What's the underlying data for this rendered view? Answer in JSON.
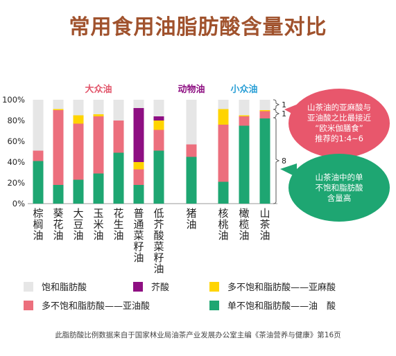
{
  "title": "常用食用油脂肪酸含量对比",
  "chart_data": {
    "type": "bar",
    "stacked": true,
    "ylim": [
      0,
      100
    ],
    "yticks": [
      "0%",
      "20%",
      "40%",
      "60%",
      "80%",
      "100%"
    ],
    "groups": [
      {
        "label": "大众油",
        "color": "#e2566b"
      },
      {
        "label": "动物油",
        "color": "#8e0f82"
      },
      {
        "label": "小众油",
        "color": "#2a9fd6"
      }
    ],
    "categories": [
      {
        "label": "棕榈油",
        "group": 0
      },
      {
        "label": "葵花油",
        "group": 0
      },
      {
        "label": "大豆油",
        "group": 0
      },
      {
        "label": "玉米油",
        "group": 0
      },
      {
        "label": "花生油",
        "group": 0
      },
      {
        "label": "普通菜籽油",
        "group": 0
      },
      {
        "label": "低芥酸菜籽油",
        "group": 0
      },
      {
        "label": "猪油",
        "group": 1
      },
      {
        "label": "核桃油",
        "group": 2
      },
      {
        "label": "橄榄油",
        "group": 2
      },
      {
        "label": "山茶油",
        "group": 2
      }
    ],
    "series": [
      {
        "name": "单不饱和脂肪酸——油　酸",
        "color": "#1ea672",
        "values": [
          41,
          18,
          23,
          29,
          49,
          18,
          51,
          45,
          21,
          75,
          82
        ]
      },
      {
        "name": "多不饱和脂肪酸——亚油酸",
        "color": "#ec6f7d",
        "values": [
          10,
          72,
          54,
          55,
          31,
          15,
          20,
          12,
          55,
          9,
          7
        ]
      },
      {
        "name": "多不饱和脂肪酸——亚麻酸",
        "color": "#ffd400",
        "values": [
          0,
          1,
          8,
          2,
          0,
          7,
          9,
          0,
          15,
          1,
          1
        ]
      },
      {
        "name": "芥酸",
        "color": "#8e0f82",
        "values": [
          0,
          0,
          0,
          0,
          0,
          52,
          4,
          0,
          0,
          0,
          0
        ]
      },
      {
        "name": "饱和脂肪酸",
        "color": "#e6e6e6",
        "values": [
          49,
          9,
          15,
          14,
          20,
          8,
          16,
          43,
          9,
          15,
          10
        ]
      }
    ],
    "brackets": [
      "1",
      "1",
      "8"
    ]
  },
  "legend_rows": [
    [
      "饱和脂肪酸",
      "芥酸",
      "多不饱和脂肪酸——亚麻酸"
    ],
    [
      "多不饱和脂肪酸——亚油酸",
      "单不饱和脂肪酸——油　酸"
    ]
  ],
  "callouts": {
    "red": [
      "山茶油的亚麻酸与",
      "亚油酸之比最接近",
      "“欧米伽膳食”",
      "推荐的1:4~6"
    ],
    "green": [
      "山茶油中的单",
      "不饱和脂肪酸",
      "含量高"
    ]
  },
  "source": "此脂肪酸比例数据来自于国家林业局油茶产业发展办公室主编《茶油营养与健康》第16页"
}
